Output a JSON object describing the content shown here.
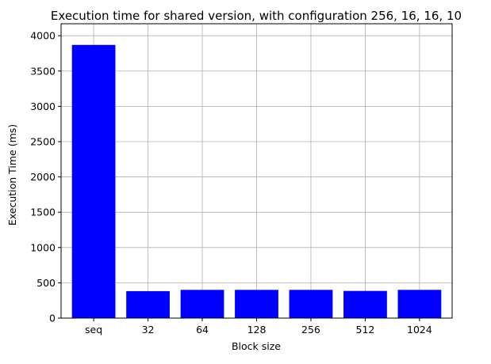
{
  "chart_data": {
    "type": "bar",
    "title": "Execution time for shared version, with configuration 256, 16, 16, 10",
    "xlabel": "Block size",
    "ylabel": "Execution Time (ms)",
    "categories": [
      "seq",
      "32",
      "64",
      "128",
      "256",
      "512",
      "1024"
    ],
    "values": [
      3870,
      382,
      400,
      400,
      400,
      385,
      400
    ],
    "ylim": [
      0,
      4000
    ],
    "yticks": [
      0,
      500,
      1000,
      1500,
      2000,
      2500,
      3000,
      3500,
      4000
    ],
    "grid": true,
    "bar_color": "#0000ff",
    "legend": "none"
  }
}
